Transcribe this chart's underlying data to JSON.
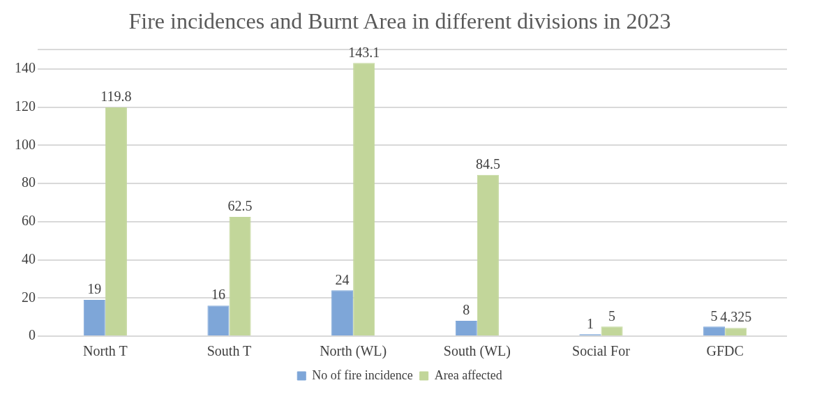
{
  "chart_data": {
    "type": "bar",
    "title": "Fire incidences and Burnt Area in different divisions in 2023",
    "categories": [
      "North T",
      "South T",
      "North (WL)",
      "South (WL)",
      "Social For",
      "GFDC"
    ],
    "series": [
      {
        "name": "No of fire incidence",
        "color": "#7ea6d8",
        "values": [
          19,
          16,
          24,
          8,
          1,
          5
        ]
      },
      {
        "name": "Area affected",
        "color": "#c2d69a",
        "values": [
          119.8,
          62.5,
          143.1,
          84.5,
          5,
          4.325
        ]
      }
    ],
    "ylim": [
      0,
      150
    ],
    "yticks": [
      0,
      20,
      40,
      60,
      80,
      100,
      120,
      140,
      {
        "value": 150,
        "label": null
      }
    ],
    "grid": "y",
    "legend": "bottom",
    "data_labels": true
  }
}
